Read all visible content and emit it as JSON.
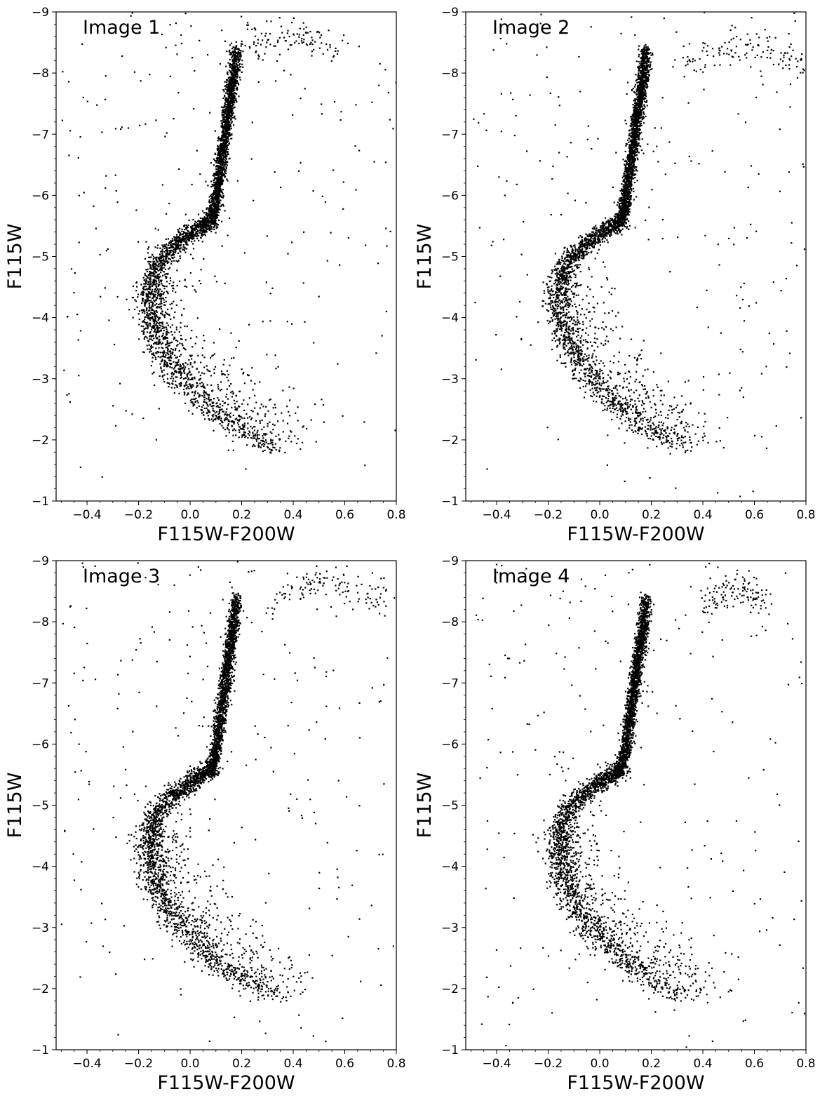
{
  "chart_data": [
    {
      "type": "scatter",
      "title": "Image 1",
      "xlabel": "F115W-F200W",
      "ylabel": "F115W",
      "xlim": [
        -0.52,
        0.8
      ],
      "ylim": [
        -1,
        -9
      ],
      "y_inverted": true,
      "xticks": [
        -0.4,
        -0.2,
        0.0,
        0.2,
        0.4,
        0.6,
        0.8
      ],
      "xtick_labels": [
        "−0.4",
        "−0.2",
        "0.0",
        "0.2",
        "0.4",
        "0.6",
        "0.8"
      ],
      "yticks": [
        -1,
        -2,
        -3,
        -4,
        -5,
        -6,
        -7,
        -8,
        -9
      ],
      "ytick_labels": [
        "−1",
        "−2",
        "−3",
        "−4",
        "−5",
        "−6",
        "−7",
        "−8",
        "−9"
      ],
      "color": "#000000",
      "sequence": {
        "x": [
          0.36,
          0.3,
          0.24,
          0.18,
          0.12,
          0.06,
          0.0,
          -0.05,
          -0.1,
          -0.13,
          -0.15,
          -0.155,
          -0.15,
          -0.12,
          -0.07,
          -0.02,
          0.03,
          0.07,
          0.09,
          0.1,
          0.11,
          0.12,
          0.13,
          0.14,
          0.15,
          0.16,
          0.17,
          0.18
        ],
        "y": [
          -1.8,
          -1.9,
          -2.05,
          -2.2,
          -2.4,
          -2.6,
          -2.85,
          -3.1,
          -3.4,
          -3.7,
          -4.0,
          -4.3,
          -4.6,
          -4.9,
          -5.15,
          -5.3,
          -5.45,
          -5.55,
          -5.7,
          -5.9,
          -6.2,
          -6.5,
          -6.8,
          -7.1,
          -7.4,
          -7.7,
          -8.0,
          -8.4
        ]
      },
      "red_clump": {
        "x": [
          0.15,
          0.6
        ],
        "y": [
          -8.0,
          -8.6
        ]
      },
      "field_x_range": [
        -0.5,
        0.8
      ],
      "field_y_range": [
        -1,
        -9
      ]
    },
    {
      "type": "scatter",
      "title": "Image 2",
      "xlabel": "F115W-F200W",
      "ylabel": "F115W",
      "xlim": [
        -0.52,
        0.8
      ],
      "ylim": [
        -1,
        -9
      ],
      "y_inverted": true,
      "xticks": [
        -0.4,
        -0.2,
        0.0,
        0.2,
        0.4,
        0.6,
        0.8
      ],
      "xtick_labels": [
        "−0.4",
        "−0.2",
        "0.0",
        "0.2",
        "0.4",
        "0.6",
        "0.8"
      ],
      "yticks": [
        -1,
        -2,
        -3,
        -4,
        -5,
        -6,
        -7,
        -8,
        -9
      ],
      "ytick_labels": [
        "−1",
        "−2",
        "−3",
        "−4",
        "−5",
        "−6",
        "−7",
        "−8",
        "−9"
      ],
      "color": "#000000",
      "sequence": {
        "x": [
          0.36,
          0.3,
          0.24,
          0.18,
          0.12,
          0.06,
          0.0,
          -0.05,
          -0.1,
          -0.13,
          -0.15,
          -0.16,
          -0.15,
          -0.12,
          -0.07,
          -0.02,
          0.03,
          0.07,
          0.09,
          0.1,
          0.11,
          0.12,
          0.13,
          0.14,
          0.15,
          0.16,
          0.17,
          0.18
        ],
        "y": [
          -1.8,
          -1.9,
          -2.05,
          -2.2,
          -2.4,
          -2.6,
          -2.85,
          -3.1,
          -3.4,
          -3.7,
          -4.0,
          -4.3,
          -4.6,
          -4.9,
          -5.15,
          -5.3,
          -5.45,
          -5.55,
          -5.7,
          -5.9,
          -6.2,
          -6.5,
          -6.8,
          -7.1,
          -7.4,
          -7.7,
          -8.0,
          -8.4
        ]
      },
      "red_clump": {
        "x": [
          0.3,
          0.8
        ],
        "y": [
          -7.9,
          -8.4
        ]
      },
      "field_x_range": [
        -0.5,
        0.8
      ],
      "field_y_range": [
        -1,
        -9
      ]
    },
    {
      "type": "scatter",
      "title": "Image 3",
      "xlabel": "F115W-F200W",
      "ylabel": "F115W",
      "xlim": [
        -0.52,
        0.8
      ],
      "ylim": [
        -1,
        -9
      ],
      "y_inverted": true,
      "xticks": [
        -0.4,
        -0.2,
        0.0,
        0.2,
        0.4,
        0.6,
        0.8
      ],
      "xtick_labels": [
        "−0.4",
        "−0.2",
        "0.0",
        "0.2",
        "0.4",
        "0.6",
        "0.8"
      ],
      "yticks": [
        -1,
        -2,
        -3,
        -4,
        -5,
        -6,
        -7,
        -8,
        -9
      ],
      "ytick_labels": [
        "−1",
        "−2",
        "−3",
        "−4",
        "−5",
        "−6",
        "−7",
        "−8",
        "−9"
      ],
      "color": "#000000",
      "sequence": {
        "x": [
          0.36,
          0.3,
          0.24,
          0.18,
          0.12,
          0.06,
          0.0,
          -0.05,
          -0.1,
          -0.13,
          -0.15,
          -0.16,
          -0.15,
          -0.12,
          -0.07,
          -0.02,
          0.03,
          0.07,
          0.09,
          0.1,
          0.11,
          0.12,
          0.13,
          0.14,
          0.15,
          0.16,
          0.17,
          0.18
        ],
        "y": [
          -1.8,
          -1.9,
          -2.05,
          -2.2,
          -2.4,
          -2.6,
          -2.85,
          -3.1,
          -3.4,
          -3.7,
          -4.0,
          -4.3,
          -4.6,
          -4.9,
          -5.15,
          -5.3,
          -5.45,
          -5.55,
          -5.7,
          -5.9,
          -6.2,
          -6.5,
          -6.8,
          -7.1,
          -7.4,
          -7.7,
          -8.0,
          -8.4
        ]
      },
      "red_clump": {
        "x": [
          0.3,
          0.75
        ],
        "y": [
          -7.9,
          -8.6
        ]
      },
      "field_x_range": [
        -0.5,
        0.8
      ],
      "field_y_range": [
        -1,
        -9
      ]
    },
    {
      "type": "scatter",
      "title": "Image 4",
      "xlabel": "F115W-F200W",
      "ylabel": "F115W",
      "xlim": [
        -0.52,
        0.8
      ],
      "ylim": [
        -1,
        -9
      ],
      "y_inverted": true,
      "xticks": [
        -0.4,
        -0.2,
        0.0,
        0.2,
        0.4,
        0.6,
        0.8
      ],
      "xtick_labels": [
        "−0.4",
        "−0.2",
        "0.0",
        "0.2",
        "0.4",
        "0.6",
        "0.8"
      ],
      "yticks": [
        -1,
        -2,
        -3,
        -4,
        -5,
        -6,
        -7,
        -8,
        -9
      ],
      "ytick_labels": [
        "−1",
        "−2",
        "−3",
        "−4",
        "−5",
        "−6",
        "−7",
        "−8",
        "−9"
      ],
      "color": "#000000",
      "sequence": {
        "x": [
          0.36,
          0.3,
          0.24,
          0.18,
          0.12,
          0.06,
          0.0,
          -0.05,
          -0.1,
          -0.13,
          -0.15,
          -0.16,
          -0.15,
          -0.12,
          -0.07,
          -0.02,
          0.03,
          0.07,
          0.09,
          0.1,
          0.11,
          0.12,
          0.13,
          0.14,
          0.15,
          0.16,
          0.17,
          0.18
        ],
        "y": [
          -1.8,
          -1.9,
          -2.05,
          -2.2,
          -2.4,
          -2.6,
          -2.85,
          -3.1,
          -3.4,
          -3.7,
          -4.0,
          -4.3,
          -4.6,
          -4.9,
          -5.15,
          -5.3,
          -5.45,
          -5.55,
          -5.7,
          -5.9,
          -6.2,
          -6.5,
          -6.8,
          -7.1,
          -7.4,
          -7.7,
          -8.0,
          -8.4
        ]
      },
      "red_clump": {
        "x": [
          0.4,
          0.65
        ],
        "y": [
          -8.0,
          -8.5
        ]
      },
      "field_x_range": [
        -0.5,
        0.8
      ],
      "field_y_range": [
        -1,
        -9
      ]
    }
  ]
}
